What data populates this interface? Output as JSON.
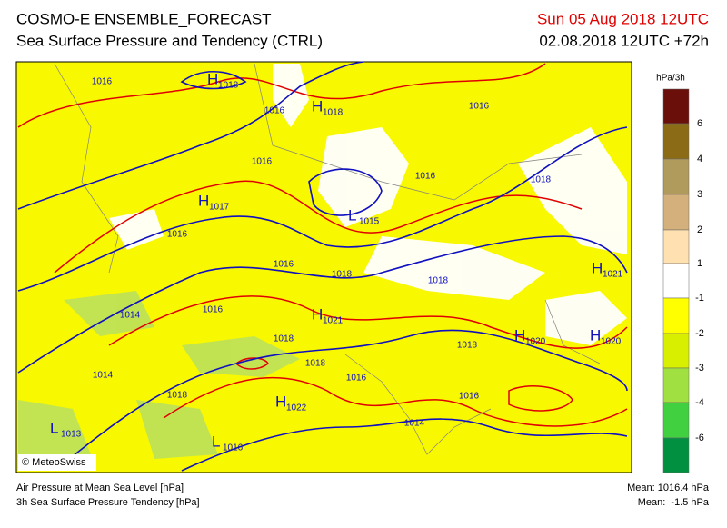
{
  "header": {
    "title": "COSMO-E ENSEMBLE_FORECAST",
    "subtitle": "Sea Surface Pressure and Tendency (CTRL)",
    "date": "Sun 05 Aug 2018 12UTC",
    "run": "02.08.2018 12UTC +72h"
  },
  "colorbar": {
    "unit": "hPa/3h",
    "labels": [
      "6",
      "4",
      "3",
      "2",
      "1",
      "-1",
      "-2",
      "-3",
      "-4",
      "-6"
    ],
    "colors": [
      "#6b0f0a",
      "#8b6b16",
      "#b09a5c",
      "#d4b07c",
      "#ffe0b0",
      "#ffffff",
      "#ffff00",
      "#d8f000",
      "#a0e040",
      "#40d040",
      "#009040"
    ]
  },
  "map": {
    "credit": "© MeteoSwiss",
    "centers": [
      {
        "letter": "H",
        "value": "1018"
      },
      {
        "letter": "H",
        "value": "1018"
      },
      {
        "letter": "H",
        "value": "1017"
      },
      {
        "letter": "L",
        "value": "1015"
      },
      {
        "letter": "H",
        "value": "1021"
      },
      {
        "letter": "H",
        "value": "1020"
      },
      {
        "letter": "H",
        "value": "1020"
      },
      {
        "letter": "H",
        "value": "1021"
      },
      {
        "letter": "H",
        "value": "1022"
      },
      {
        "letter": "L",
        "value": "1016"
      },
      {
        "letter": "L",
        "value": "1013"
      }
    ],
    "isobar_labels": [
      "1016",
      "1016",
      "1016",
      "1016",
      "1016",
      "1016",
      "1016",
      "1016",
      "1016",
      "1016",
      "1018",
      "1018",
      "1018",
      "1018",
      "1018",
      "1018",
      "1018",
      "1014",
      "1014",
      "1014"
    ]
  },
  "footer": {
    "left_1": "Air Pressure at Mean Sea Level [hPa]",
    "left_2": "3h Sea Surface Pressure Tendency [hPa]",
    "right_1": "Mean: 1016.4 hPa",
    "right_2": "Mean:  -1.5 hPa"
  }
}
